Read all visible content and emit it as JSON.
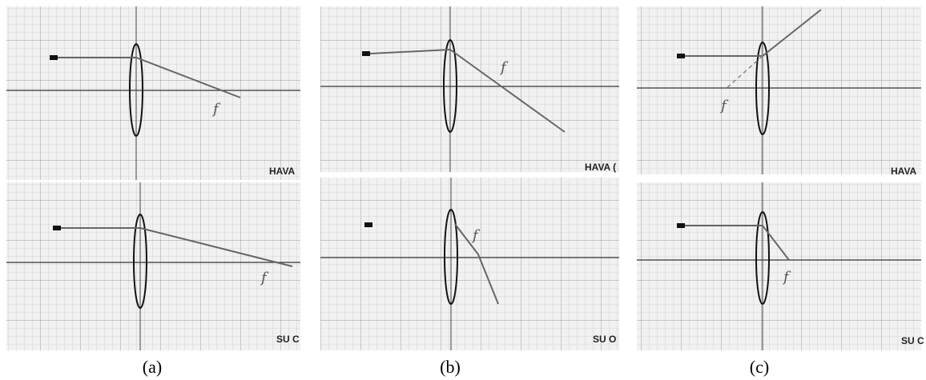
{
  "panels": [
    {
      "caption": "(a)",
      "top": {
        "medium": "HAVA",
        "marks": [
          "f"
        ]
      },
      "bottom": {
        "medium": "SU C",
        "marks": [
          "f"
        ]
      }
    },
    {
      "caption": "(b)",
      "top": {
        "medium": "HAVA (",
        "marks": [
          "f"
        ]
      },
      "bottom": {
        "medium": "SU O",
        "marks": [
          "f"
        ]
      }
    },
    {
      "caption": "(c)",
      "top": {
        "medium": "HAVA",
        "marks": [
          "f"
        ]
      },
      "bottom": {
        "medium": "SU C",
        "marks": [
          "f"
        ]
      }
    }
  ]
}
